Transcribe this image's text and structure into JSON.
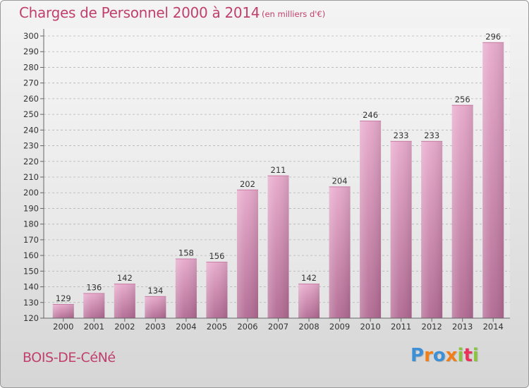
{
  "header": {
    "title": "Charges de Personnel 2000 à 2014",
    "subtitle": "(en milliers d'€)"
  },
  "footer": {
    "commune": "BOIS-DE-CéNé",
    "logo": {
      "letters": [
        "P",
        "r",
        "o",
        "x",
        "i",
        "t",
        "i"
      ],
      "colors": [
        "#3d8fd6",
        "#f07f1b",
        "#3d8fd6",
        "#f07f1b",
        "#8bc43f",
        "#e8325a",
        "#8bc43f"
      ]
    }
  },
  "chart_data": {
    "type": "bar",
    "title": "Charges de Personnel 2000 à 2014",
    "subtitle": "(en milliers d'€)",
    "xlabel": "",
    "ylabel": "",
    "categories": [
      "2000",
      "2001",
      "2002",
      "2003",
      "2004",
      "2005",
      "2006",
      "2007",
      "2008",
      "2009",
      "2010",
      "2011",
      "2012",
      "2013",
      "2014"
    ],
    "values": [
      129,
      136,
      142,
      134,
      158,
      156,
      202,
      211,
      142,
      204,
      246,
      233,
      233,
      256,
      296
    ],
    "ylim": [
      120,
      300
    ],
    "yticks": [
      120,
      130,
      140,
      150,
      160,
      170,
      180,
      190,
      200,
      210,
      220,
      230,
      240,
      250,
      260,
      270,
      280,
      290,
      300
    ],
    "grid": "horizontal-dashed",
    "legend": "none",
    "bar_color": "#d98fb5"
  }
}
